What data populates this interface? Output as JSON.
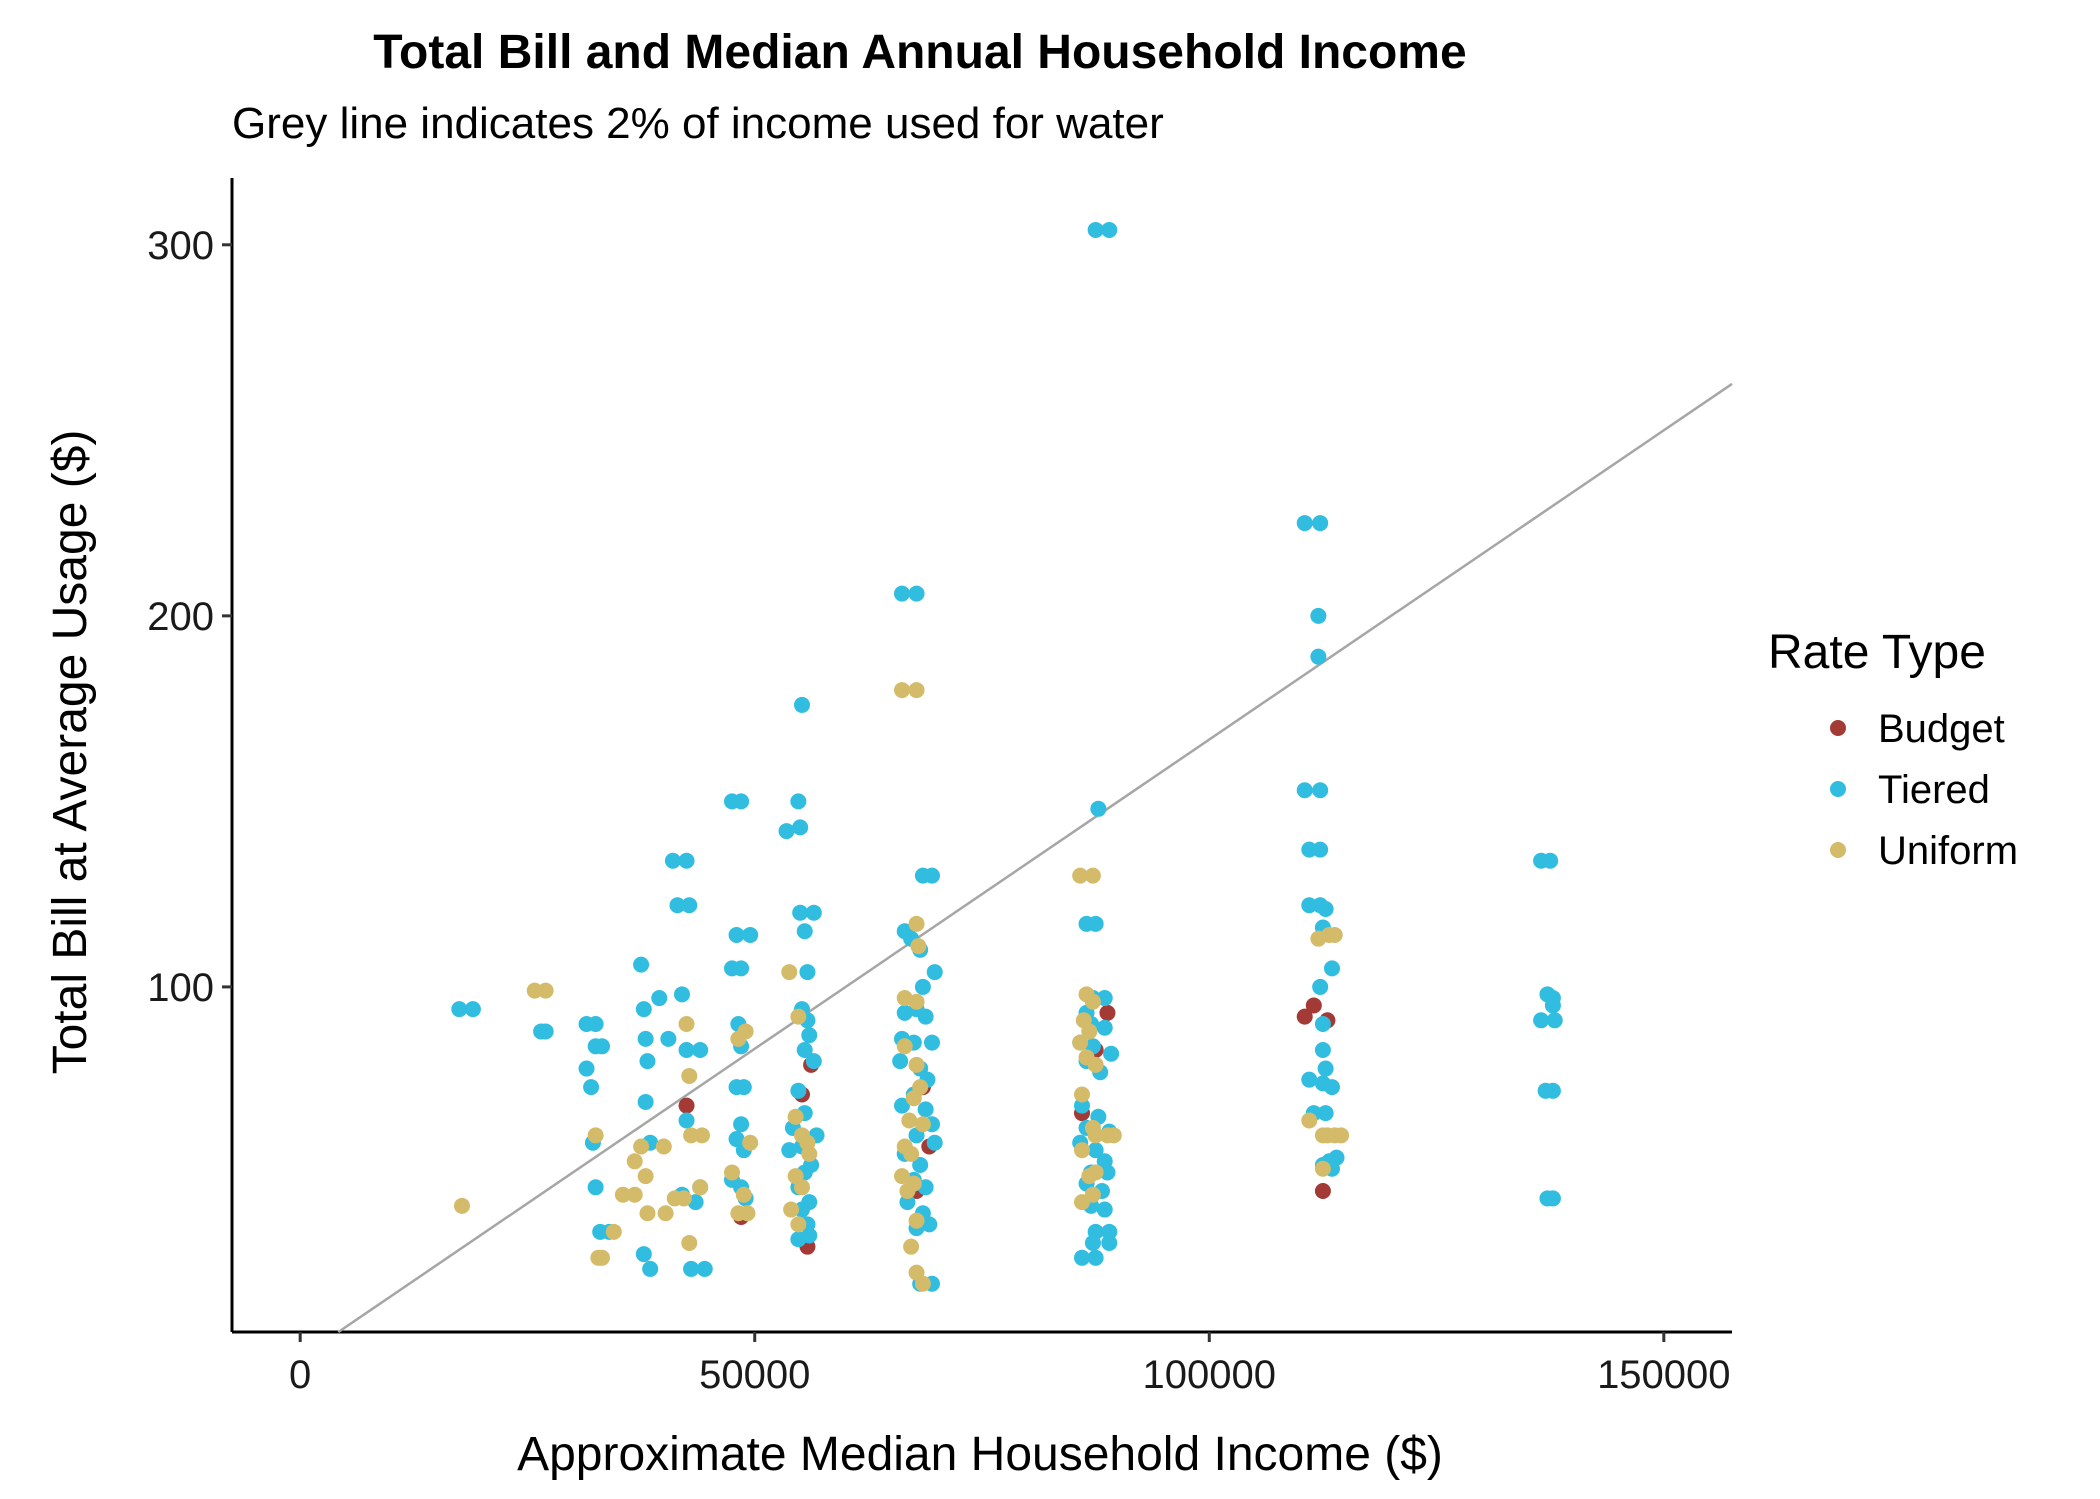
{
  "chart_data": {
    "type": "scatter",
    "title": "Total Bill and Median Annual Household Income",
    "subtitle": "Grey line indicates 2% of income used for water",
    "xlabel": "Approximate Median Household Income ($)",
    "ylabel": "Total Bill at Average Usage ($)",
    "xlim": [
      -7500,
      157500
    ],
    "ylim": [
      7,
      318
    ],
    "x_ticks": [
      0,
      50000,
      100000,
      150000
    ],
    "x_tick_labels": [
      "0",
      "50000",
      "100000",
      "150000"
    ],
    "y_ticks": [
      100,
      200,
      300
    ],
    "y_tick_labels": [
      "100",
      "200",
      "300"
    ],
    "grid": false,
    "reference_line": {
      "slope_per_year_income": 0.02,
      "divisor_months": 12,
      "color": "#a6a6a6"
    },
    "legend": {
      "title": "Rate Type",
      "position": "right",
      "entries": [
        {
          "name": "Budget",
          "color": "#a33a36"
        },
        {
          "name": "Tiered",
          "color": "#30bde0"
        },
        {
          "name": "Uniform",
          "color": "#d4bb6a"
        }
      ]
    },
    "series": [
      {
        "name": "Budget",
        "color": "#a33a36",
        "points": [
          [
            42500,
            68
          ],
          [
            55200,
            71
          ],
          [
            55800,
            30
          ],
          [
            56200,
            79
          ],
          [
            48500,
            38
          ],
          [
            68500,
            73
          ],
          [
            69200,
            57
          ],
          [
            67800,
            45
          ],
          [
            86000,
            66
          ],
          [
            88800,
            93
          ],
          [
            87500,
            83
          ],
          [
            110500,
            92
          ],
          [
            111500,
            95
          ],
          [
            112500,
            45
          ],
          [
            113000,
            91
          ]
        ]
      },
      {
        "name": "Tiered",
        "color": "#30bde0",
        "points": [
          [
            17500,
            94
          ],
          [
            19000,
            94
          ],
          [
            26500,
            88
          ],
          [
            27000,
            88
          ],
          [
            31500,
            90
          ],
          [
            32500,
            90
          ],
          [
            31500,
            78
          ],
          [
            32000,
            73
          ],
          [
            32500,
            84
          ],
          [
            33200,
            84
          ],
          [
            32500,
            46
          ],
          [
            33000,
            34
          ],
          [
            34000,
            34
          ],
          [
            32200,
            58
          ],
          [
            37500,
            106
          ],
          [
            37800,
            94
          ],
          [
            38000,
            86
          ],
          [
            38200,
            80
          ],
          [
            38000,
            69
          ],
          [
            38500,
            58
          ],
          [
            37800,
            28
          ],
          [
            38500,
            24
          ],
          [
            39500,
            97
          ],
          [
            40500,
            86
          ],
          [
            41000,
            134
          ],
          [
            42500,
            134
          ],
          [
            41500,
            122
          ],
          [
            42800,
            122
          ],
          [
            42000,
            98
          ],
          [
            42500,
            83
          ],
          [
            44000,
            83
          ],
          [
            42500,
            64
          ],
          [
            42000,
            44
          ],
          [
            43000,
            24
          ],
          [
            44500,
            24
          ],
          [
            44000,
            46
          ],
          [
            43500,
            42
          ],
          [
            47500,
            105
          ],
          [
            48500,
            105
          ],
          [
            48000,
            114
          ],
          [
            49500,
            114
          ],
          [
            47500,
            150
          ],
          [
            48500,
            150
          ],
          [
            48200,
            90
          ],
          [
            48500,
            84
          ],
          [
            48000,
            73
          ],
          [
            48800,
            73
          ],
          [
            48500,
            63
          ],
          [
            48000,
            59
          ],
          [
            48800,
            56
          ],
          [
            47500,
            48
          ],
          [
            48500,
            46
          ],
          [
            49000,
            43
          ],
          [
            53500,
            142
          ],
          [
            55000,
            143
          ],
          [
            54800,
            150
          ],
          [
            55200,
            176
          ],
          [
            55000,
            120
          ],
          [
            56500,
            120
          ],
          [
            55500,
            115
          ],
          [
            55800,
            104
          ],
          [
            55200,
            94
          ],
          [
            55800,
            91
          ],
          [
            56000,
            87
          ],
          [
            55500,
            83
          ],
          [
            56500,
            80
          ],
          [
            54800,
            72
          ],
          [
            55500,
            66
          ],
          [
            56800,
            60
          ],
          [
            54200,
            62
          ],
          [
            55200,
            57
          ],
          [
            53800,
            56
          ],
          [
            56200,
            52
          ],
          [
            55500,
            50
          ],
          [
            54800,
            46
          ],
          [
            56000,
            42
          ],
          [
            55200,
            40
          ],
          [
            55800,
            36
          ],
          [
            54800,
            32
          ],
          [
            56000,
            33
          ],
          [
            66200,
            206
          ],
          [
            67800,
            206
          ],
          [
            66500,
            115
          ],
          [
            67200,
            113
          ],
          [
            68500,
            130
          ],
          [
            69500,
            130
          ],
          [
            68200,
            110
          ],
          [
            69800,
            104
          ],
          [
            68500,
            100
          ],
          [
            67800,
            94
          ],
          [
            66500,
            93
          ],
          [
            68800,
            92
          ],
          [
            66200,
            86
          ],
          [
            67500,
            85
          ],
          [
            69500,
            85
          ],
          [
            66000,
            80
          ],
          [
            68200,
            78
          ],
          [
            69000,
            75
          ],
          [
            67500,
            71
          ],
          [
            68800,
            67
          ],
          [
            66200,
            68
          ],
          [
            69500,
            63
          ],
          [
            67800,
            60
          ],
          [
            69800,
            58
          ],
          [
            66500,
            55
          ],
          [
            68200,
            52
          ],
          [
            67500,
            48
          ],
          [
            68800,
            46
          ],
          [
            66800,
            42
          ],
          [
            68500,
            39
          ],
          [
            67800,
            35
          ],
          [
            69200,
            36
          ],
          [
            68200,
            20
          ],
          [
            69500,
            20
          ],
          [
            87500,
            304
          ],
          [
            89000,
            304
          ],
          [
            87800,
            148
          ],
          [
            86500,
            117
          ],
          [
            87500,
            117
          ],
          [
            87200,
            97
          ],
          [
            88500,
            97
          ],
          [
            86500,
            93
          ],
          [
            87000,
            90
          ],
          [
            88500,
            89
          ],
          [
            85800,
            85
          ],
          [
            87200,
            84
          ],
          [
            89200,
            82
          ],
          [
            86500,
            80
          ],
          [
            88000,
            77
          ],
          [
            86000,
            68
          ],
          [
            87800,
            65
          ],
          [
            86500,
            62
          ],
          [
            89000,
            61
          ],
          [
            85800,
            58
          ],
          [
            87500,
            56
          ],
          [
            88500,
            53
          ],
          [
            87000,
            50
          ],
          [
            88800,
            50
          ],
          [
            86500,
            47
          ],
          [
            88200,
            45
          ],
          [
            87000,
            41
          ],
          [
            88500,
            40
          ],
          [
            87500,
            34
          ],
          [
            89000,
            34
          ],
          [
            87200,
            31
          ],
          [
            89000,
            31
          ],
          [
            86000,
            27
          ],
          [
            87500,
            27
          ],
          [
            110500,
            225
          ],
          [
            112200,
            225
          ],
          [
            112000,
            200
          ],
          [
            112000,
            189
          ],
          [
            110500,
            153
          ],
          [
            112200,
            153
          ],
          [
            111000,
            137
          ],
          [
            112200,
            137
          ],
          [
            111000,
            122
          ],
          [
            112200,
            122
          ],
          [
            112800,
            121
          ],
          [
            112500,
            116
          ],
          [
            113500,
            105
          ],
          [
            112200,
            100
          ],
          [
            112500,
            90
          ],
          [
            112500,
            83
          ],
          [
            112800,
            78
          ],
          [
            111000,
            75
          ],
          [
            112500,
            74
          ],
          [
            113500,
            73
          ],
          [
            111500,
            66
          ],
          [
            112800,
            66
          ],
          [
            113200,
            53
          ],
          [
            114000,
            54
          ],
          [
            112500,
            52
          ],
          [
            113500,
            51
          ],
          [
            136500,
            134
          ],
          [
            137500,
            134
          ],
          [
            137200,
            98
          ],
          [
            137800,
            97
          ],
          [
            137800,
            95
          ],
          [
            136500,
            91
          ],
          [
            138000,
            91
          ],
          [
            137000,
            72
          ],
          [
            137800,
            72
          ],
          [
            137200,
            43
          ],
          [
            137800,
            43
          ]
        ]
      },
      {
        "name": "Uniform",
        "color": "#d4bb6a",
        "points": [
          [
            17800,
            41
          ],
          [
            25800,
            99
          ],
          [
            27000,
            99
          ],
          [
            32500,
            60
          ],
          [
            32800,
            27
          ],
          [
            33200,
            27
          ],
          [
            34500,
            34
          ],
          [
            35500,
            44
          ],
          [
            36800,
            44
          ],
          [
            36800,
            53
          ],
          [
            37500,
            57
          ],
          [
            38000,
            49
          ],
          [
            38200,
            39
          ],
          [
            40000,
            57
          ],
          [
            40200,
            39
          ],
          [
            41200,
            43
          ],
          [
            42200,
            43
          ],
          [
            42500,
            90
          ],
          [
            42800,
            76
          ],
          [
            43000,
            60
          ],
          [
            44200,
            60
          ],
          [
            42800,
            31
          ],
          [
            44000,
            46
          ],
          [
            47500,
            50
          ],
          [
            48200,
            86
          ],
          [
            48200,
            39
          ],
          [
            49200,
            39
          ],
          [
            48800,
            44
          ],
          [
            49000,
            88
          ],
          [
            49500,
            58
          ],
          [
            53800,
            104
          ],
          [
            54800,
            92
          ],
          [
            54500,
            65
          ],
          [
            55200,
            60
          ],
          [
            55800,
            58
          ],
          [
            56000,
            55
          ],
          [
            54500,
            49
          ],
          [
            55200,
            46
          ],
          [
            54000,
            40
          ],
          [
            54800,
            36
          ],
          [
            66200,
            180
          ],
          [
            67800,
            180
          ],
          [
            67800,
            117
          ],
          [
            68000,
            111
          ],
          [
            66500,
            97
          ],
          [
            67800,
            96
          ],
          [
            66500,
            84
          ],
          [
            67800,
            79
          ],
          [
            68200,
            73
          ],
          [
            67500,
            70
          ],
          [
            67000,
            64
          ],
          [
            68500,
            63
          ],
          [
            66500,
            57
          ],
          [
            67200,
            55
          ],
          [
            66200,
            49
          ],
          [
            67500,
            47
          ],
          [
            66800,
            45
          ],
          [
            67800,
            37
          ],
          [
            67200,
            30
          ],
          [
            67800,
            23
          ],
          [
            68500,
            20
          ],
          [
            85800,
            130
          ],
          [
            87200,
            130
          ],
          [
            86500,
            98
          ],
          [
            87200,
            96
          ],
          [
            86200,
            91
          ],
          [
            86800,
            88
          ],
          [
            85800,
            85
          ],
          [
            86500,
            81
          ],
          [
            87500,
            79
          ],
          [
            86000,
            71
          ],
          [
            87200,
            62
          ],
          [
            87500,
            60
          ],
          [
            86000,
            56
          ],
          [
            88800,
            60
          ],
          [
            89500,
            60
          ],
          [
            87500,
            50
          ],
          [
            86800,
            49
          ],
          [
            87200,
            44
          ],
          [
            86000,
            42
          ],
          [
            111000,
            64
          ],
          [
            112500,
            60
          ],
          [
            113000,
            60
          ],
          [
            113800,
            60
          ],
          [
            114500,
            60
          ],
          [
            112000,
            113
          ],
          [
            113200,
            114
          ],
          [
            113800,
            114
          ],
          [
            112500,
            51
          ]
        ]
      }
    ]
  }
}
